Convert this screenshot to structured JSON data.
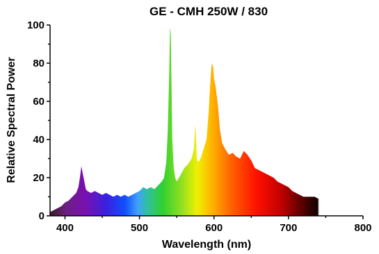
{
  "chart_data": {
    "type": "area",
    "title": "GE - CMH 250W / 830",
    "xlabel": "Wavelength (nm)",
    "ylabel": "Relative Spectral Power",
    "xlim": [
      380,
      800
    ],
    "ylim": [
      0,
      100
    ],
    "xticks": [
      "400",
      "500",
      "600",
      "700",
      "800"
    ],
    "yticks": [
      "0",
      "20",
      "40",
      "60",
      "80",
      "100"
    ],
    "grid": false,
    "legend": "none",
    "fill": "visible-spectrum gradient",
    "series": [
      {
        "x": [
          380,
          385,
          390,
          395,
          400,
          405,
          410,
          415,
          418,
          420,
          422,
          424,
          426,
          428,
          430,
          435,
          440,
          445,
          450,
          455,
          460,
          465,
          470,
          475,
          480,
          485,
          490,
          495,
          500,
          505,
          510,
          515,
          520,
          525,
          530,
          533,
          536,
          538,
          540,
          541,
          542,
          543,
          544,
          546,
          548,
          550,
          553,
          556,
          560,
          565,
          570,
          573,
          575,
          576,
          577,
          579,
          582,
          586,
          590,
          593,
          595,
          597,
          599,
          600,
          602,
          604,
          606,
          608,
          611,
          615,
          620,
          625,
          630,
          635,
          640,
          645,
          650,
          655,
          660,
          665,
          670,
          675,
          680,
          685,
          690,
          695,
          700,
          705,
          710,
          715,
          720,
          725,
          730,
          735,
          740,
          745,
          750,
          752,
          754,
          755,
          756,
          758,
          760
        ],
        "y": [
          2,
          3,
          4,
          5,
          7,
          8,
          10,
          12,
          15,
          20,
          26,
          22,
          18,
          14,
          13,
          12,
          13,
          12,
          11,
          12,
          11,
          10,
          11,
          10,
          11,
          10,
          11,
          12,
          13,
          15,
          14,
          15,
          14,
          16,
          18,
          20,
          28,
          45,
          75,
          99,
          95,
          70,
          40,
          25,
          20,
          18,
          20,
          22,
          25,
          27,
          30,
          35,
          48,
          40,
          30,
          28,
          30,
          35,
          40,
          55,
          70,
          80,
          78,
          72,
          68,
          62,
          55,
          45,
          38,
          35,
          32,
          33,
          31,
          30,
          34,
          32,
          29,
          25,
          24,
          23,
          22,
          21,
          20,
          18,
          17,
          16,
          15,
          13,
          12,
          11,
          10,
          10,
          10,
          10,
          9,
          9,
          9,
          10,
          12,
          14,
          13,
          12,
          3
        ]
      }
    ]
  }
}
